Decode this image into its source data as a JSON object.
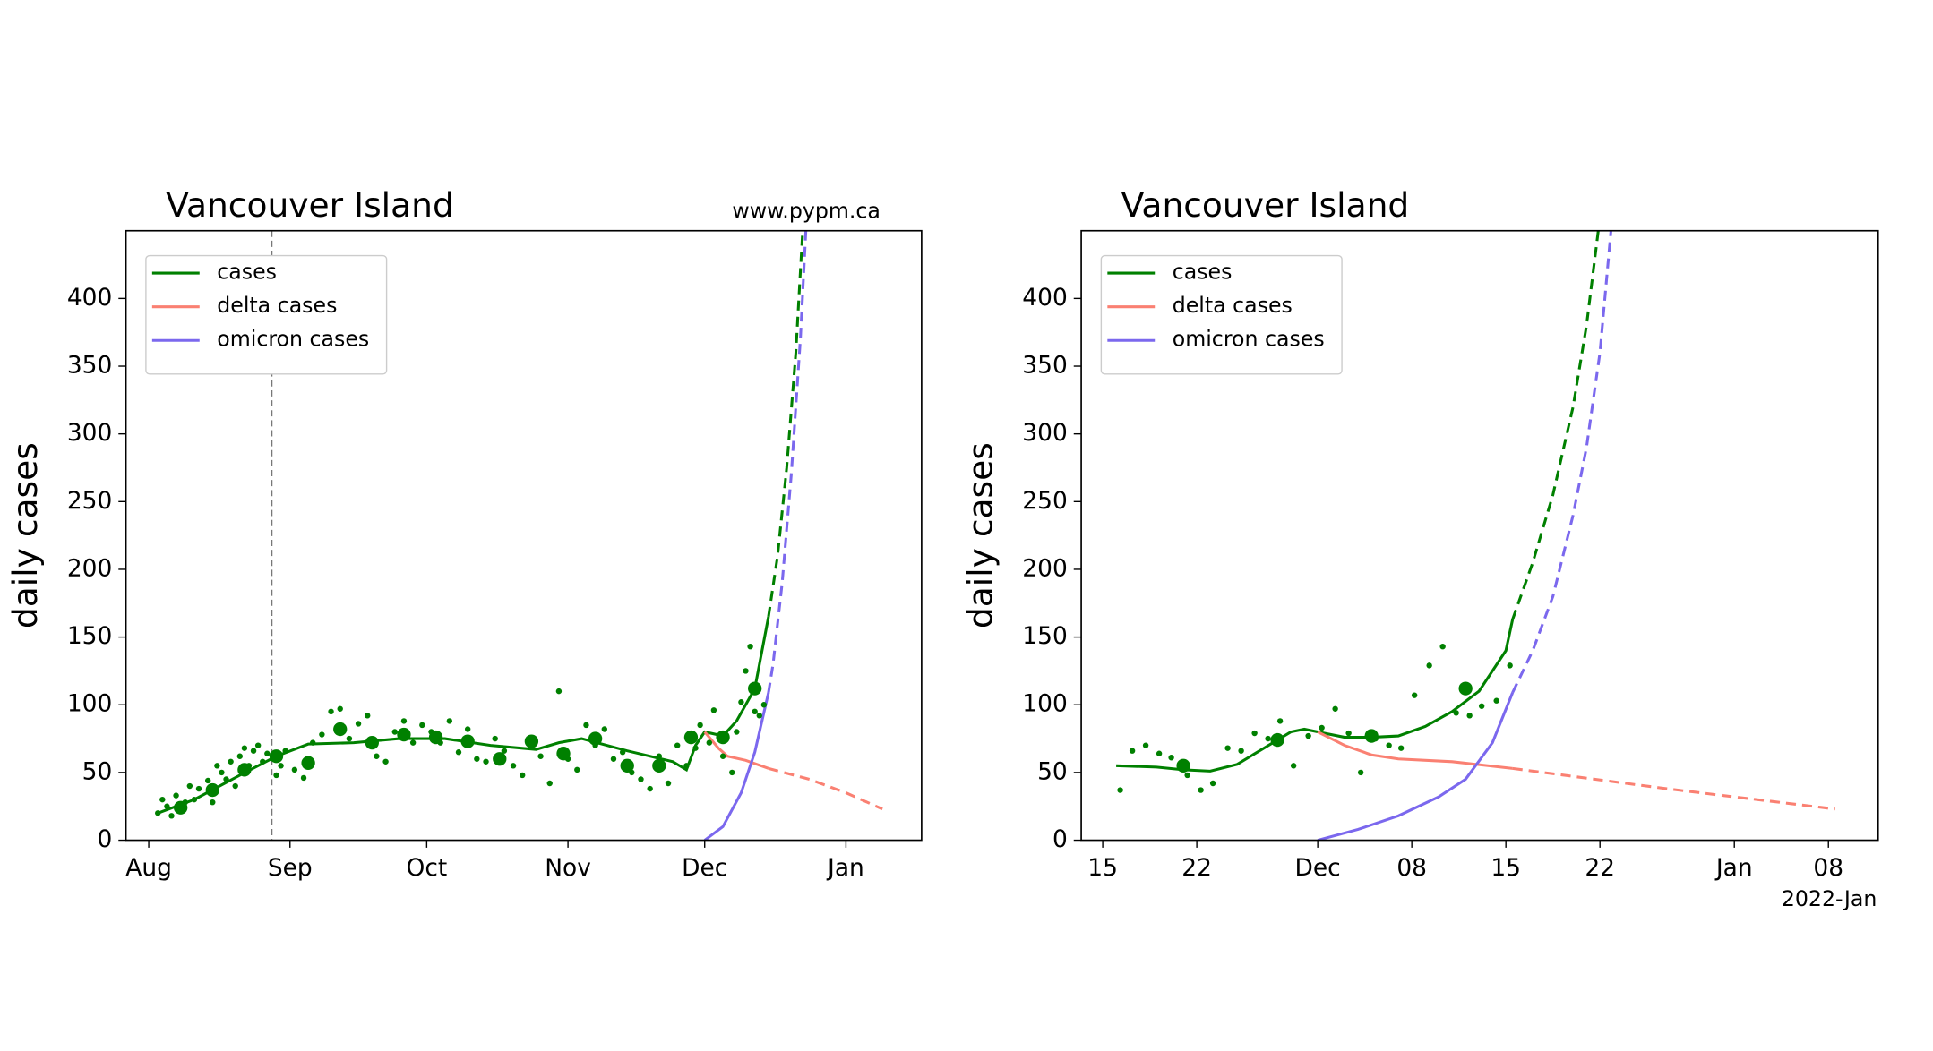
{
  "chart_data": [
    {
      "type": "line",
      "title": "Vancouver Island",
      "annotation": "www.pypm.ca",
      "ylabel": "daily cases",
      "xlim": [
        -5,
        169.6
      ],
      "ylim": [
        0,
        450
      ],
      "xticks": [
        {
          "value": 0,
          "label": "Aug"
        },
        {
          "value": 31,
          "label": "Sep"
        },
        {
          "value": 61,
          "label": "Oct"
        },
        {
          "value": 92,
          "label": "Nov"
        },
        {
          "value": 122,
          "label": "Dec"
        },
        {
          "value": 153,
          "label": "Jan"
        }
      ],
      "yticks": [
        0,
        50,
        100,
        150,
        200,
        250,
        300,
        350,
        400
      ],
      "legend": "upper left",
      "vline": 27,
      "series": [
        {
          "name": "cases",
          "color": "#008000",
          "style": "solid",
          "x": [
            2,
            10,
            20,
            28,
            35,
            45,
            55,
            65,
            75,
            85,
            90,
            95,
            105,
            115,
            118,
            120,
            122,
            126,
            129,
            133,
            136
          ],
          "values": [
            20,
            30,
            48,
            62,
            71,
            72,
            75,
            75,
            70,
            67,
            72,
            75,
            66,
            58,
            52,
            70,
            80,
            77,
            88,
            112,
            165
          ]
        },
        {
          "color": "#008000",
          "style": "dashed",
          "x": [
            136,
            138,
            140,
            142,
            144
          ],
          "values": [
            165,
            210,
            275,
            360,
            480
          ]
        },
        {
          "name": "delta cases",
          "color": "#fa8072",
          "style": "solid",
          "x": [
            122,
            125,
            127,
            131,
            136
          ],
          "values": [
            80,
            68,
            62,
            59,
            53
          ]
        },
        {
          "color": "#fa8072",
          "style": "dashed",
          "x": [
            136,
            145,
            153,
            161
          ],
          "values": [
            53,
            45,
            35,
            23
          ]
        },
        {
          "name": "omicron cases",
          "color": "#7b68ee",
          "style": "solid",
          "x": [
            122,
            126,
            130,
            133,
            136
          ],
          "values": [
            0,
            10,
            35,
            65,
            109
          ]
        },
        {
          "color": "#7b68ee",
          "style": "dashed",
          "x": [
            136,
            137,
            139,
            141,
            143,
            144.5
          ],
          "values": [
            109,
            130,
            190,
            270,
            370,
            470
          ]
        },
        {
          "color": "#008000",
          "style": "dots",
          "x": [
            2,
            3,
            4,
            5,
            6,
            7,
            8,
            9,
            10,
            11,
            13,
            14,
            15,
            16,
            17,
            18,
            19,
            20,
            21,
            22,
            23,
            24,
            25,
            26,
            28,
            29,
            30,
            32,
            34,
            36,
            38,
            40,
            42,
            44,
            46,
            48,
            50,
            52,
            54,
            56,
            58,
            60,
            62,
            64,
            66,
            68,
            70,
            72,
            74,
            76,
            78,
            80,
            82,
            84,
            86,
            88,
            90,
            92,
            94,
            96,
            98,
            100,
            102,
            104,
            106,
            108,
            110,
            112,
            114,
            116,
            118,
            120,
            121,
            123,
            124,
            126,
            128,
            129,
            130,
            131,
            132,
            133,
            134,
            135
          ],
          "values": [
            20,
            30,
            25,
            18,
            33,
            22,
            28,
            40,
            30,
            38,
            44,
            28,
            55,
            50,
            45,
            58,
            40,
            62,
            68,
            55,
            66,
            70,
            58,
            64,
            48,
            55,
            66,
            52,
            46,
            72,
            78,
            95,
            97,
            75,
            86,
            92,
            62,
            58,
            80,
            88,
            72,
            85,
            80,
            72,
            88,
            65,
            82,
            60,
            58,
            75,
            66,
            55,
            48,
            72,
            62,
            42,
            110,
            60,
            52,
            85,
            70,
            82,
            60,
            65,
            50,
            45,
            38,
            62,
            42,
            70,
            55,
            68,
            85,
            72,
            96,
            62,
            50,
            80,
            102,
            125,
            143,
            95,
            92,
            100
          ]
        },
        {
          "color": "#008000",
          "style": "big-dots",
          "x": [
            7,
            14,
            21,
            28,
            35,
            42,
            49,
            56,
            63,
            70,
            77,
            84,
            91,
            98,
            105,
            112,
            119,
            126,
            133
          ],
          "values": [
            24,
            37,
            52,
            62,
            57,
            82,
            72,
            78,
            76,
            73,
            60,
            73,
            64,
            75,
            55,
            55,
            76,
            76,
            112
          ]
        }
      ]
    },
    {
      "type": "line",
      "title": "Vancouver Island",
      "annotation": "2022-Jan",
      "ylabel": "daily cases",
      "xlim": [
        -17.6,
        41.7
      ],
      "ylim": [
        0,
        450
      ],
      "xticks": [
        {
          "value": -16,
          "label": "15"
        },
        {
          "value": -9,
          "label": "22"
        },
        {
          "value": 0,
          "label": "Dec"
        },
        {
          "value": 7,
          "label": "08"
        },
        {
          "value": 14,
          "label": "15"
        },
        {
          "value": 21,
          "label": "22"
        },
        {
          "value": 31,
          "label": "Jan"
        },
        {
          "value": 38,
          "label": "08"
        }
      ],
      "yticks": [
        0,
        50,
        100,
        150,
        200,
        250,
        300,
        350,
        400
      ],
      "legend": "upper left",
      "series": [
        {
          "name": "cases",
          "color": "#008000",
          "style": "solid",
          "x": [
            -15,
            -12,
            -10,
            -8,
            -6,
            -4,
            -2,
            -1,
            0,
            2,
            4,
            6,
            8,
            10,
            12,
            14,
            14.5
          ],
          "values": [
            55,
            54,
            52,
            51,
            56,
            68,
            80,
            82,
            80,
            76,
            76,
            77,
            84,
            95,
            110,
            140,
            163
          ]
        },
        {
          "color": "#008000",
          "style": "dashed",
          "x": [
            14.5,
            16,
            17.5,
            19,
            20,
            21
          ],
          "values": [
            163,
            205,
            255,
            320,
            380,
            460
          ]
        },
        {
          "name": "delta cases",
          "color": "#fa8072",
          "style": "solid",
          "x": [
            0,
            2,
            4,
            6,
            10,
            14.5
          ],
          "values": [
            80,
            70,
            63,
            60,
            58,
            53
          ]
        },
        {
          "color": "#fa8072",
          "style": "dashed",
          "x": [
            14.5,
            26,
            38.5
          ],
          "values": [
            53,
            38,
            23
          ]
        },
        {
          "name": "omicron cases",
          "color": "#7b68ee",
          "style": "solid",
          "x": [
            0,
            3,
            6,
            9,
            11,
            13,
            14.5
          ],
          "values": [
            0,
            8,
            18,
            32,
            45,
            72,
            109
          ]
        },
        {
          "color": "#7b68ee",
          "style": "dashed",
          "x": [
            14.5,
            16,
            17.5,
            19,
            20,
            21,
            22
          ],
          "values": [
            109,
            140,
            180,
            240,
            290,
            360,
            470
          ]
        },
        {
          "color": "#008000",
          "style": "dots",
          "x": [
            -14.7,
            -13.8,
            -12.8,
            -11.8,
            -10.9,
            -9.7,
            -8.7,
            -7.8,
            -6.7,
            -5.7,
            -4.7,
            -3.7,
            -2.8,
            -1.8,
            -0.7,
            0.3,
            1.3,
            2.3,
            3.2,
            4.3,
            5.3,
            6.2,
            7.2,
            8.3,
            9.3,
            10.3,
            11.3,
            12.2,
            13.3,
            14.3
          ],
          "values": [
            37,
            66,
            70,
            64,
            61,
            48,
            37,
            42,
            68,
            66,
            79,
            75,
            88,
            55,
            77,
            83,
            97,
            79,
            50,
            75,
            70,
            68,
            107,
            129,
            143,
            94,
            92,
            99,
            103,
            129
          ]
        },
        {
          "color": "#008000",
          "style": "big-dots",
          "x": [
            -10,
            -3,
            4,
            11
          ],
          "values": [
            55,
            74,
            77,
            112
          ]
        }
      ]
    }
  ]
}
